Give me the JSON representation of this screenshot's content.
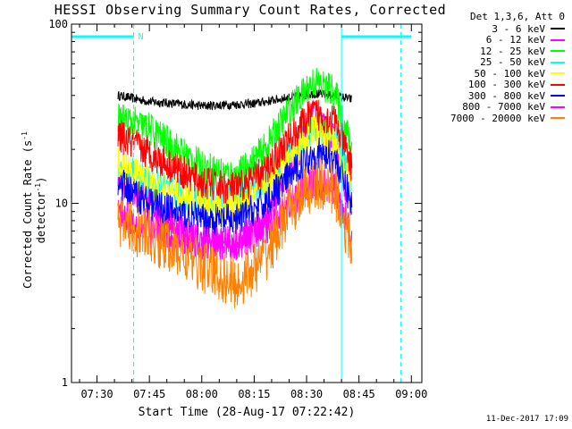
{
  "chart_data": {
    "type": "line",
    "title": "HESSI Observing Summary Count Rates, Corrected",
    "xlabel": "Start Time (28-Aug-17 07:22:42)",
    "ylabel_main": "Corrected Count Rate (s",
    "ylabel_sup1": "-1",
    "ylabel_mid": " detector",
    "ylabel_sup2": "-1",
    "ylabel_end": ")",
    "yscale": "log",
    "ylim": [
      1,
      100
    ],
    "xlim": [
      "07:22:42",
      "09:03:00"
    ],
    "x_tick_labels": [
      "07:30",
      "07:45",
      "08:00",
      "08:15",
      "08:30",
      "08:45",
      "09:00"
    ],
    "y_tick_labels": [
      "1",
      "10",
      "100"
    ],
    "legend_header": "Det 1,3,6, Att 0",
    "legend_position": "right",
    "timestamp": "11-Dec-2017 17:09",
    "region_label": "N",
    "region_color": "#00ffff",
    "night_bars": [
      {
        "start": "07:22:42",
        "end": "07:40:30"
      },
      {
        "start": "08:40:00",
        "end": "09:00:00"
      }
    ],
    "dashed_lines": [
      "07:40:30",
      "08:57:00"
    ],
    "solid_lines": [
      "07:22:42",
      "08:40:00"
    ],
    "series": [
      {
        "name": "3 - 6 keV",
        "color": "#000000",
        "x": [
          "07:36",
          "07:45",
          "08:00",
          "08:15",
          "08:25",
          "08:32",
          "08:38",
          "08:43"
        ],
        "values": [
          40,
          37,
          35,
          36,
          39,
          41,
          40,
          38
        ]
      },
      {
        "name": "6 - 12 keV",
        "color": "#ff00ff",
        "x": [
          "07:36",
          "07:45",
          "08:00",
          "08:10",
          "08:18",
          "08:25",
          "08:32",
          "08:38",
          "08:43"
        ],
        "values": [
          14,
          10,
          6,
          6,
          8,
          15,
          30,
          22,
          9
        ]
      },
      {
        "name": "12 - 25 keV",
        "color": "#00ff00",
        "x": [
          "07:36",
          "07:45",
          "08:00",
          "08:10",
          "08:18",
          "08:25",
          "08:32",
          "08:38",
          "08:43"
        ],
        "values": [
          30,
          26,
          16,
          14,
          20,
          33,
          48,
          42,
          20
        ]
      },
      {
        "name": "25 - 50 keV",
        "color": "#00ffff",
        "x": [
          "07:36",
          "07:45",
          "08:00",
          "08:10",
          "08:18",
          "08:25",
          "08:32",
          "08:38",
          "08:43"
        ],
        "values": [
          16,
          13,
          10,
          11,
          13,
          19,
          27,
          24,
          13
        ]
      },
      {
        "name": "50 - 100 keV",
        "color": "#ffff00",
        "x": [
          "07:36",
          "07:45",
          "08:00",
          "08:10",
          "08:18",
          "08:25",
          "08:32",
          "08:38",
          "08:43"
        ],
        "values": [
          17,
          13,
          10,
          10,
          12,
          18,
          26,
          22,
          12
        ]
      },
      {
        "name": "100 - 300 keV",
        "color": "#ff0000",
        "x": [
          "07:36",
          "07:45",
          "08:00",
          "08:10",
          "08:18",
          "08:25",
          "08:32",
          "08:38",
          "08:43"
        ],
        "values": [
          24,
          19,
          13,
          12,
          15,
          23,
          32,
          29,
          16
        ]
      },
      {
        "name": "300 - 800 keV",
        "color": "#0000ff",
        "x": [
          "07:36",
          "07:45",
          "08:00",
          "08:10",
          "08:18",
          "08:25",
          "08:32",
          "08:38",
          "08:43"
        ],
        "values": [
          13,
          10,
          8,
          8,
          10,
          14,
          19,
          18,
          10
        ]
      },
      {
        "name": "800 - 7000 keV",
        "color": "#ff00ff",
        "x": [
          "07:36",
          "07:45",
          "08:00",
          "08:10",
          "08:18",
          "08:25",
          "08:32",
          "08:38",
          "08:43"
        ],
        "values": [
          9,
          7,
          6,
          6,
          7,
          10,
          13,
          12,
          7
        ]
      },
      {
        "name": "7000 - 20000 keV",
        "color": "#ff8000",
        "x": [
          "07:36",
          "07:45",
          "08:00",
          "08:10",
          "08:18",
          "08:25",
          "08:32",
          "08:38",
          "08:43"
        ],
        "values": [
          8,
          6.5,
          4.5,
          3.5,
          5,
          9,
          13,
          12,
          5.5
        ]
      }
    ]
  }
}
